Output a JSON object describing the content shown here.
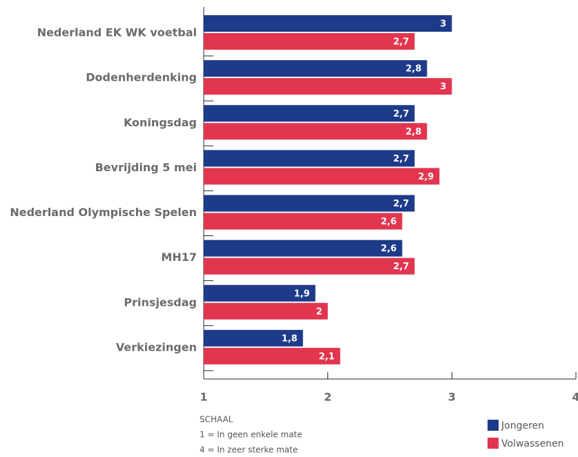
{
  "chart_data": {
    "type": "bar",
    "orientation": "horizontal",
    "categories": [
      "Nederland EK WK voetbal",
      "Dodenherdenking",
      "Koningsdag",
      "Bevrijding 5 mei",
      "Nederland Olympische Spelen",
      "MH17",
      "Prinsjesdag",
      "Verkiezingen"
    ],
    "series": [
      {
        "name": "Jongeren",
        "color": "#1e3b8a",
        "values": [
          3,
          2.8,
          2.7,
          2.7,
          2.7,
          2.6,
          1.9,
          1.8
        ],
        "value_labels": [
          "3",
          "2,8",
          "2,7",
          "2,7",
          "2,7",
          "2,6",
          "1,9",
          "1,8"
        ]
      },
      {
        "name": "Volwassenen",
        "color": "#e2354f",
        "values": [
          2.7,
          3,
          2.8,
          2.9,
          2.6,
          2.7,
          2,
          2.1
        ],
        "value_labels": [
          "2,7",
          "3",
          "2,8",
          "2,9",
          "2,6",
          "2,7",
          "2",
          "2,1"
        ]
      }
    ],
    "xlim": [
      1,
      4
    ],
    "xticks": [
      1,
      2,
      3,
      4
    ],
    "notes": [
      "SCHAAL",
      "1  = In geen enkele mate",
      "4 = In zeer sterke mate"
    ],
    "legend": "bottom-right"
  }
}
